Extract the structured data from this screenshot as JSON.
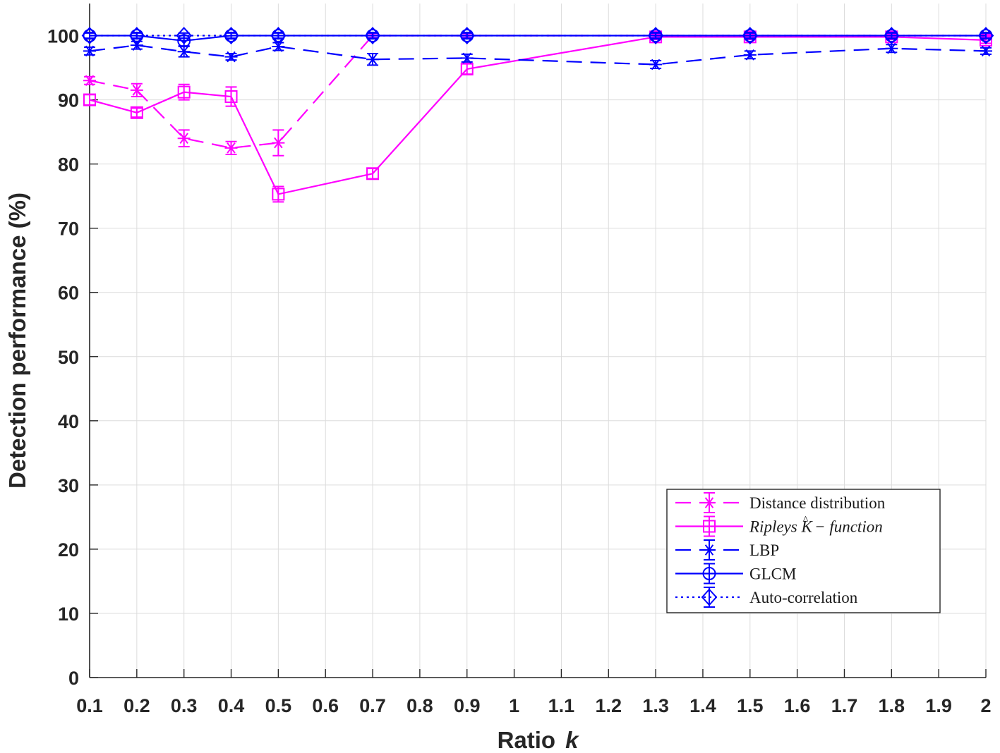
{
  "chart_data": {
    "type": "line",
    "title": "",
    "xlabel": "Ratio",
    "xlabel_symbol": "k",
    "ylabel": "Detection performance (%)",
    "xlim": [
      0.1,
      2
    ],
    "ylim": [
      0,
      105
    ],
    "grid": true,
    "legend_position": "bottom-right",
    "x_ticks": [
      0.1,
      0.2,
      0.3,
      0.4,
      0.5,
      0.6,
      0.7,
      0.8,
      0.9,
      1,
      1.1,
      1.2,
      1.3,
      1.4,
      1.5,
      1.6,
      1.7,
      1.8,
      1.9,
      2
    ],
    "y_ticks": [
      0,
      10,
      20,
      30,
      40,
      50,
      60,
      70,
      80,
      90,
      100
    ],
    "x": [
      0.1,
      0.2,
      0.3,
      0.4,
      0.5,
      0.7,
      0.9,
      1.3,
      1.5,
      1.8,
      2
    ],
    "series": [
      {
        "name": "Distance distribution",
        "color": "#ff00ff",
        "dash": "dashed",
        "marker": "asterisk",
        "values": [
          93.0,
          91.5,
          84.0,
          82.5,
          83.3,
          100,
          100,
          100,
          100,
          100,
          100
        ],
        "errors": [
          0.6,
          1.0,
          1.3,
          1.0,
          2.0,
          0.3,
          0.3,
          0.3,
          0.3,
          0.3,
          0.3
        ]
      },
      {
        "name": "Ripleys K̂ − function",
        "label_main": "Ripleys ",
        "label_k": "K",
        "label_hat": "^",
        "label_rest": " − function",
        "color": "#ff00ff",
        "dash": "solid",
        "marker": "square",
        "values": [
          90.0,
          88.0,
          91.2,
          90.5,
          75.3,
          78.5,
          94.8,
          99.8,
          99.8,
          99.8,
          99.3
        ],
        "errors": [
          0.8,
          0.7,
          1.2,
          1.5,
          1.2,
          0.8,
          0.8,
          0.4,
          0.4,
          0.4,
          0.5
        ]
      },
      {
        "name": "LBP",
        "color": "#0000ff",
        "dash": "dashed",
        "marker": "asterisk",
        "values": [
          97.6,
          98.5,
          97.5,
          96.7,
          98.3,
          96.3,
          96.5,
          95.5,
          97.0,
          98.0,
          97.6
        ],
        "errors": [
          0.6,
          0.6,
          0.8,
          0.5,
          0.6,
          0.9,
          0.6,
          0.6,
          0.6,
          0.6,
          0.5
        ]
      },
      {
        "name": "GLCM",
        "color": "#0000ff",
        "dash": "solid",
        "marker": "circle",
        "values": [
          100,
          100,
          99.2,
          100,
          100,
          100,
          100,
          100,
          100,
          100,
          100
        ],
        "errors": [
          0.5,
          0.5,
          0.8,
          0.5,
          0.5,
          0.5,
          0.5,
          0.5,
          0.5,
          0.5,
          0.5
        ]
      },
      {
        "name": "Auto-correlation",
        "color": "#0000ff",
        "dash": "dotted",
        "marker": "diamond",
        "values": [
          100,
          100,
          100,
          100,
          100,
          100,
          100,
          100,
          100,
          100,
          100
        ],
        "errors": [
          0.4,
          0.4,
          0.4,
          0.4,
          0.4,
          0.4,
          0.4,
          0.4,
          0.4,
          0.4,
          0.4
        ]
      }
    ]
  }
}
